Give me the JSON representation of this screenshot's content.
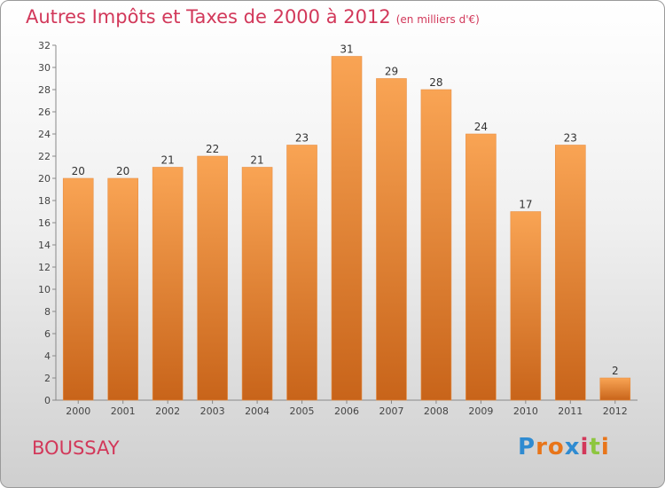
{
  "header": {
    "title": "Autres Impôts et Taxes de 2000 à 2012",
    "unit": "(en milliers d'€)"
  },
  "footer": {
    "commune": "BOUSSAY",
    "logo_letters": [
      "P",
      "r",
      "o",
      "x",
      "i",
      "t",
      "i"
    ],
    "logo_colors": [
      "#2f8bd1",
      "#e8751a",
      "#e8751a",
      "#2f8bd1",
      "#d2385a",
      "#8dc63f",
      "#e8751a"
    ]
  },
  "chart_data": {
    "type": "bar",
    "title": "Autres Impôts et Taxes de 2000 à 2012",
    "subtitle": "(en milliers d'€)",
    "xlabel": "",
    "ylabel": "",
    "categories": [
      "2000",
      "2001",
      "2002",
      "2003",
      "2004",
      "2005",
      "2006",
      "2007",
      "2008",
      "2009",
      "2010",
      "2011",
      "2012"
    ],
    "values": [
      20,
      20,
      21,
      22,
      21,
      23,
      31,
      29,
      28,
      24,
      17,
      23,
      2
    ],
    "ylim": [
      0,
      32
    ],
    "yticks": [
      0,
      2,
      4,
      6,
      8,
      10,
      12,
      14,
      16,
      18,
      20,
      22,
      24,
      26,
      28,
      30,
      32
    ],
    "grid": false,
    "colors": {
      "bar_top": "#f9a454",
      "bar_bottom": "#c8641a",
      "axis_label": "#d2385a"
    }
  }
}
